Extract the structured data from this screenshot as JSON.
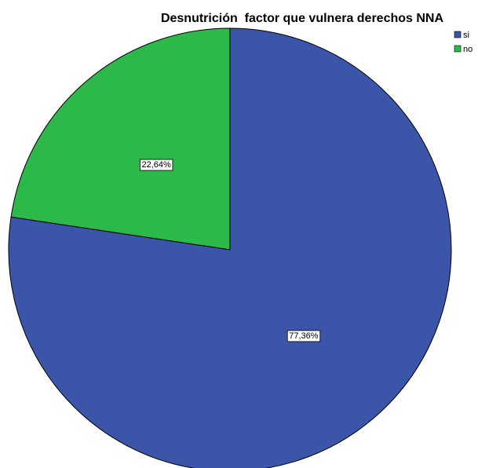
{
  "chart_data": {
    "type": "pie",
    "title": "Desnutrición  factor que vulnera derechos NNA",
    "categories": [
      "si",
      "no"
    ],
    "values": [
      77.36,
      22.64
    ],
    "labels": [
      "77,36%",
      "22,64%"
    ],
    "colors": [
      "#3b56a8",
      "#2db84a"
    ],
    "legend": {
      "position": "top-right",
      "entries": [
        "si",
        "no"
      ]
    },
    "start_angle_deg": 0,
    "direction": "clockwise"
  }
}
